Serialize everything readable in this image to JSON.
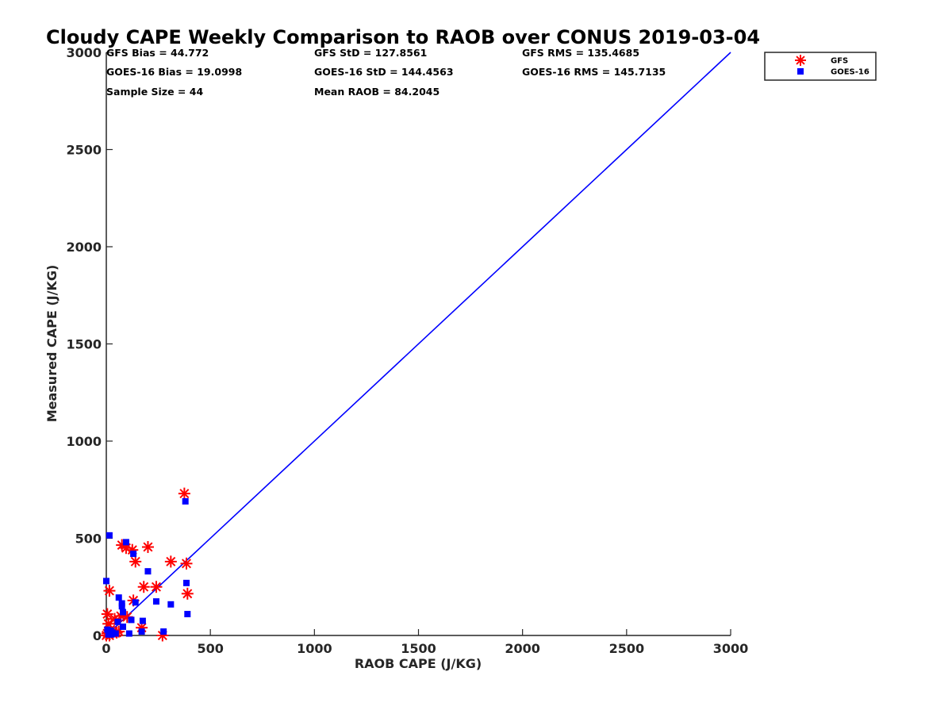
{
  "chart_data": {
    "type": "scatter",
    "title": "Cloudy CAPE Weekly Comparison to RAOB over CONUS 2019-03-04",
    "xlabel": "RAOB CAPE (J/KG)",
    "ylabel": "Measured CAPE (J/KG)",
    "xlim": [
      0,
      3000
    ],
    "ylim": [
      0,
      3000
    ],
    "x_ticks": [
      "0",
      "500",
      "1000",
      "1500",
      "2000",
      "2500",
      "3000"
    ],
    "y_ticks": [
      "0",
      "500",
      "1000",
      "1500",
      "2000",
      "2500",
      "3000"
    ],
    "grid": false,
    "legend_position": "top-right",
    "stats": [
      "GFS Bias = 44.772",
      "GFS StD = 127.8561",
      "GFS RMS = 135.4685",
      "GOES-16 Bias = 19.0998",
      "GOES-16 StD = 144.4563",
      "GOES-16 RMS = 145.7135",
      "Sample Size = 44",
      "Mean RAOB = 84.2045"
    ],
    "reference_line": {
      "color": "#0000ff",
      "points": [
        [
          0,
          0
        ],
        [
          3000,
          3000
        ]
      ]
    },
    "series": [
      {
        "name": "GFS",
        "marker": "asterisk",
        "color": "#ff0000",
        "points": [
          [
            375,
            730
          ],
          [
            75,
            465
          ],
          [
            95,
            450
          ],
          [
            125,
            440
          ],
          [
            200,
            455
          ],
          [
            140,
            380
          ],
          [
            310,
            380
          ],
          [
            385,
            370
          ],
          [
            15,
            230
          ],
          [
            180,
            250
          ],
          [
            240,
            250
          ],
          [
            390,
            215
          ],
          [
            130,
            180
          ],
          [
            70,
            100
          ],
          [
            100,
            95
          ],
          [
            5,
            110
          ],
          [
            40,
            85
          ],
          [
            10,
            60
          ],
          [
            20,
            30
          ],
          [
            5,
            10
          ],
          [
            30,
            10
          ],
          [
            50,
            15
          ],
          [
            170,
            40
          ],
          [
            270,
            0
          ],
          [
            0,
            0
          ],
          [
            15,
            0
          ],
          [
            60,
            20
          ]
        ]
      },
      {
        "name": "GOES-16",
        "marker": "square",
        "color": "#0000ff",
        "points": [
          [
            380,
            690
          ],
          [
            15,
            515
          ],
          [
            95,
            480
          ],
          [
            130,
            420
          ],
          [
            200,
            330
          ],
          [
            0,
            280
          ],
          [
            385,
            270
          ],
          [
            60,
            195
          ],
          [
            75,
            165
          ],
          [
            75,
            150
          ],
          [
            140,
            170
          ],
          [
            240,
            175
          ],
          [
            310,
            160
          ],
          [
            80,
            120
          ],
          [
            390,
            110
          ],
          [
            120,
            80
          ],
          [
            175,
            75
          ],
          [
            55,
            70
          ],
          [
            80,
            45
          ],
          [
            5,
            30
          ],
          [
            20,
            25
          ],
          [
            30,
            15
          ],
          [
            170,
            20
          ],
          [
            275,
            20
          ],
          [
            110,
            10
          ],
          [
            10,
            5
          ],
          [
            25,
            5
          ],
          [
            45,
            10
          ]
        ]
      }
    ]
  }
}
